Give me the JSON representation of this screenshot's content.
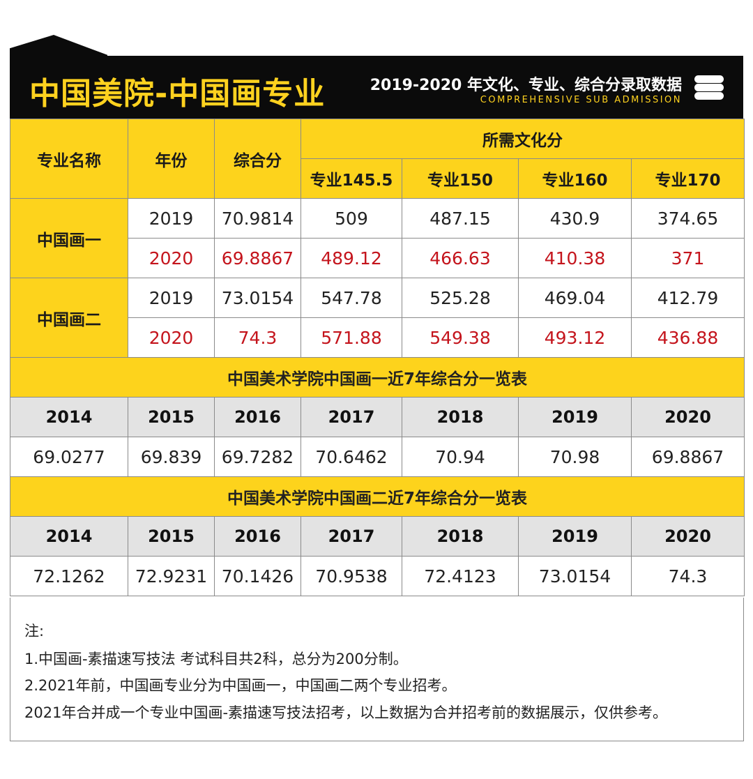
{
  "header": {
    "title": "中国美院-中国画专业",
    "subtitle": "2019-2020 年文化、专业、综合分录取数据",
    "subtitle_en": "COMPREHENSIVE SUB ADMISSION",
    "icon": "database-icon"
  },
  "main_table": {
    "col_major": "专业名称",
    "col_year": "年份",
    "col_score": "综合分",
    "col_culture": "所需文化分",
    "sub_cols": [
      "专业145.5",
      "专业150",
      "专业160",
      "专业170"
    ],
    "groups": [
      {
        "name": "中国画一",
        "rows": [
          {
            "year": "2019",
            "score": "70.9814",
            "c1": "509",
            "c2": "487.15",
            "c3": "430.9",
            "c4": "374.65"
          },
          {
            "year": "2020",
            "score": "69.8867",
            "c1": "489.12",
            "c2": "466.63",
            "c3": "410.38",
            "c4": "371"
          }
        ]
      },
      {
        "name": "中国画二",
        "rows": [
          {
            "year": "2019",
            "score": "73.0154",
            "c1": "547.78",
            "c2": "525.28",
            "c3": "469.04",
            "c4": "412.79"
          },
          {
            "year": "2020",
            "score": "74.3",
            "c1": "571.88",
            "c2": "549.38",
            "c3": "493.12",
            "c4": "436.88"
          }
        ]
      }
    ]
  },
  "seven_year_1": {
    "title": "中国美术学院中国画一近7年综合分一览表",
    "years": [
      "2014",
      "2015",
      "2016",
      "2017",
      "2018",
      "2019",
      "2020"
    ],
    "values": [
      "69.0277",
      "69.839",
      "69.7282",
      "70.6462",
      "70.94",
      "70.98",
      "69.8867"
    ]
  },
  "seven_year_2": {
    "title": "中国美术学院中国画二近7年综合分一览表",
    "years": [
      "2014",
      "2015",
      "2016",
      "2017",
      "2018",
      "2019",
      "2020"
    ],
    "values": [
      "72.1262",
      "72.9231",
      "70.1426",
      "70.9538",
      "72.4123",
      "73.0154",
      "74.3"
    ]
  },
  "notes": {
    "label": "注:",
    "lines": [
      "1.中国画-素描速写技法 考试科目共2科，总分为200分制。",
      "2.2021年前，中国画专业分为中国画一，中国画二两个专业招考。",
      "2021年合并成一个专业中国画-素描速写技法招考，以上数据为合并招考前的数据展示，仅供参考。"
    ]
  },
  "colors": {
    "accent_yellow": "#fdd31c",
    "header_black": "#0b0b0b",
    "highlight_red": "#c4141c",
    "header_gray": "#e3e3e3"
  }
}
